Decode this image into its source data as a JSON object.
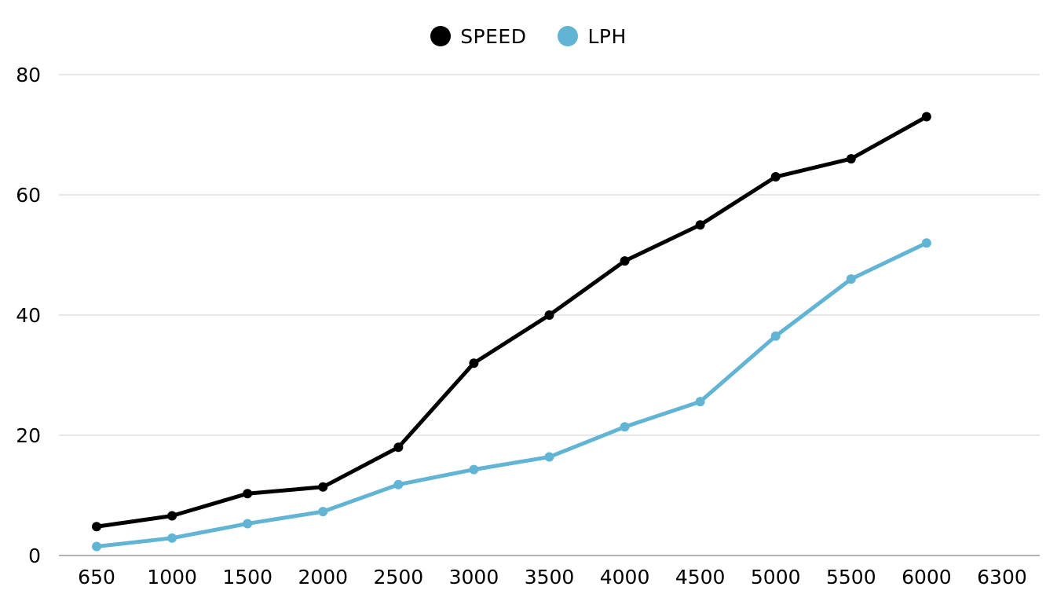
{
  "chart_data": {
    "type": "line",
    "categories": [
      "650",
      "1000",
      "1500",
      "2000",
      "2500",
      "3000",
      "3500",
      "4000",
      "4500",
      "5000",
      "5500",
      "6000",
      "6300"
    ],
    "series": [
      {
        "name": "SPEED",
        "color": "#000000",
        "values": [
          4.8,
          6.6,
          10.3,
          11.4,
          18,
          32,
          40,
          49,
          55,
          63,
          66,
          73,
          null
        ]
      },
      {
        "name": "LPH",
        "color": "#62b4d4",
        "values": [
          1.5,
          2.9,
          5.3,
          7.3,
          11.8,
          14.3,
          16.4,
          21.4,
          25.6,
          36.5,
          46,
          52,
          null
        ]
      }
    ],
    "title": "",
    "xlabel": "",
    "ylabel": "",
    "ylim": [
      0,
      80
    ],
    "yticks": [
      "0",
      "20",
      "40",
      "60",
      "80"
    ],
    "grid": true,
    "legend_position": "top-center"
  }
}
